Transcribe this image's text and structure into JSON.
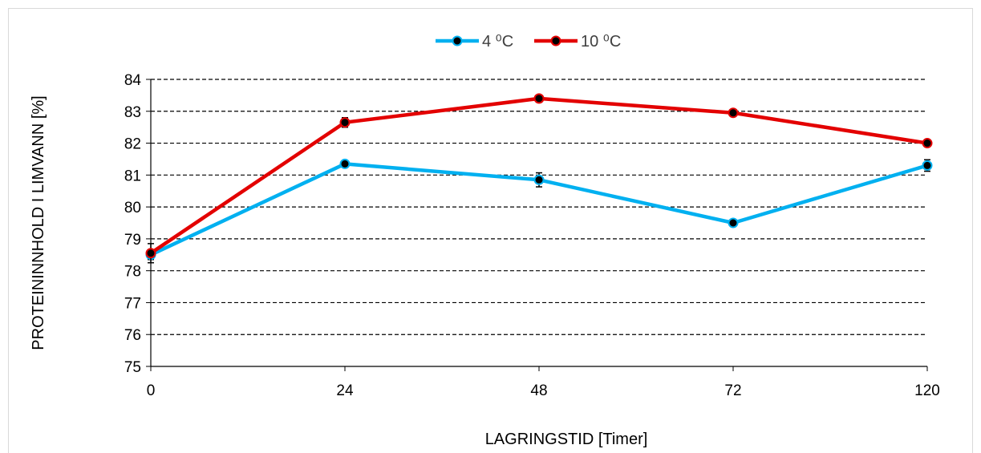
{
  "chart_data": {
    "type": "line",
    "title": "",
    "xlabel": "LAGRINGSTID [Timer]",
    "ylabel": "PROTEININNHOLD I LIMVANN [%]",
    "categories": [
      "0",
      "24",
      "48",
      "72",
      "120"
    ],
    "ylim": [
      75,
      84
    ],
    "yticks": [
      "75",
      "76",
      "77",
      "78",
      "79",
      "80",
      "81",
      "82",
      "83",
      "84"
    ],
    "grid": true,
    "legend_position": "top",
    "series": [
      {
        "name": "4 ⁰C",
        "color": "#00b0f0",
        "values": [
          78.5,
          81.35,
          80.85,
          79.5,
          81.3
        ],
        "errors": [
          0.15,
          0.08,
          0.22,
          0.05,
          0.18
        ]
      },
      {
        "name": "10 ⁰C",
        "color": "#e30000",
        "values": [
          78.55,
          82.65,
          83.4,
          82.95,
          82.0
        ],
        "errors": [
          0.3,
          0.15,
          0.05,
          0.05,
          0.1
        ]
      }
    ]
  }
}
